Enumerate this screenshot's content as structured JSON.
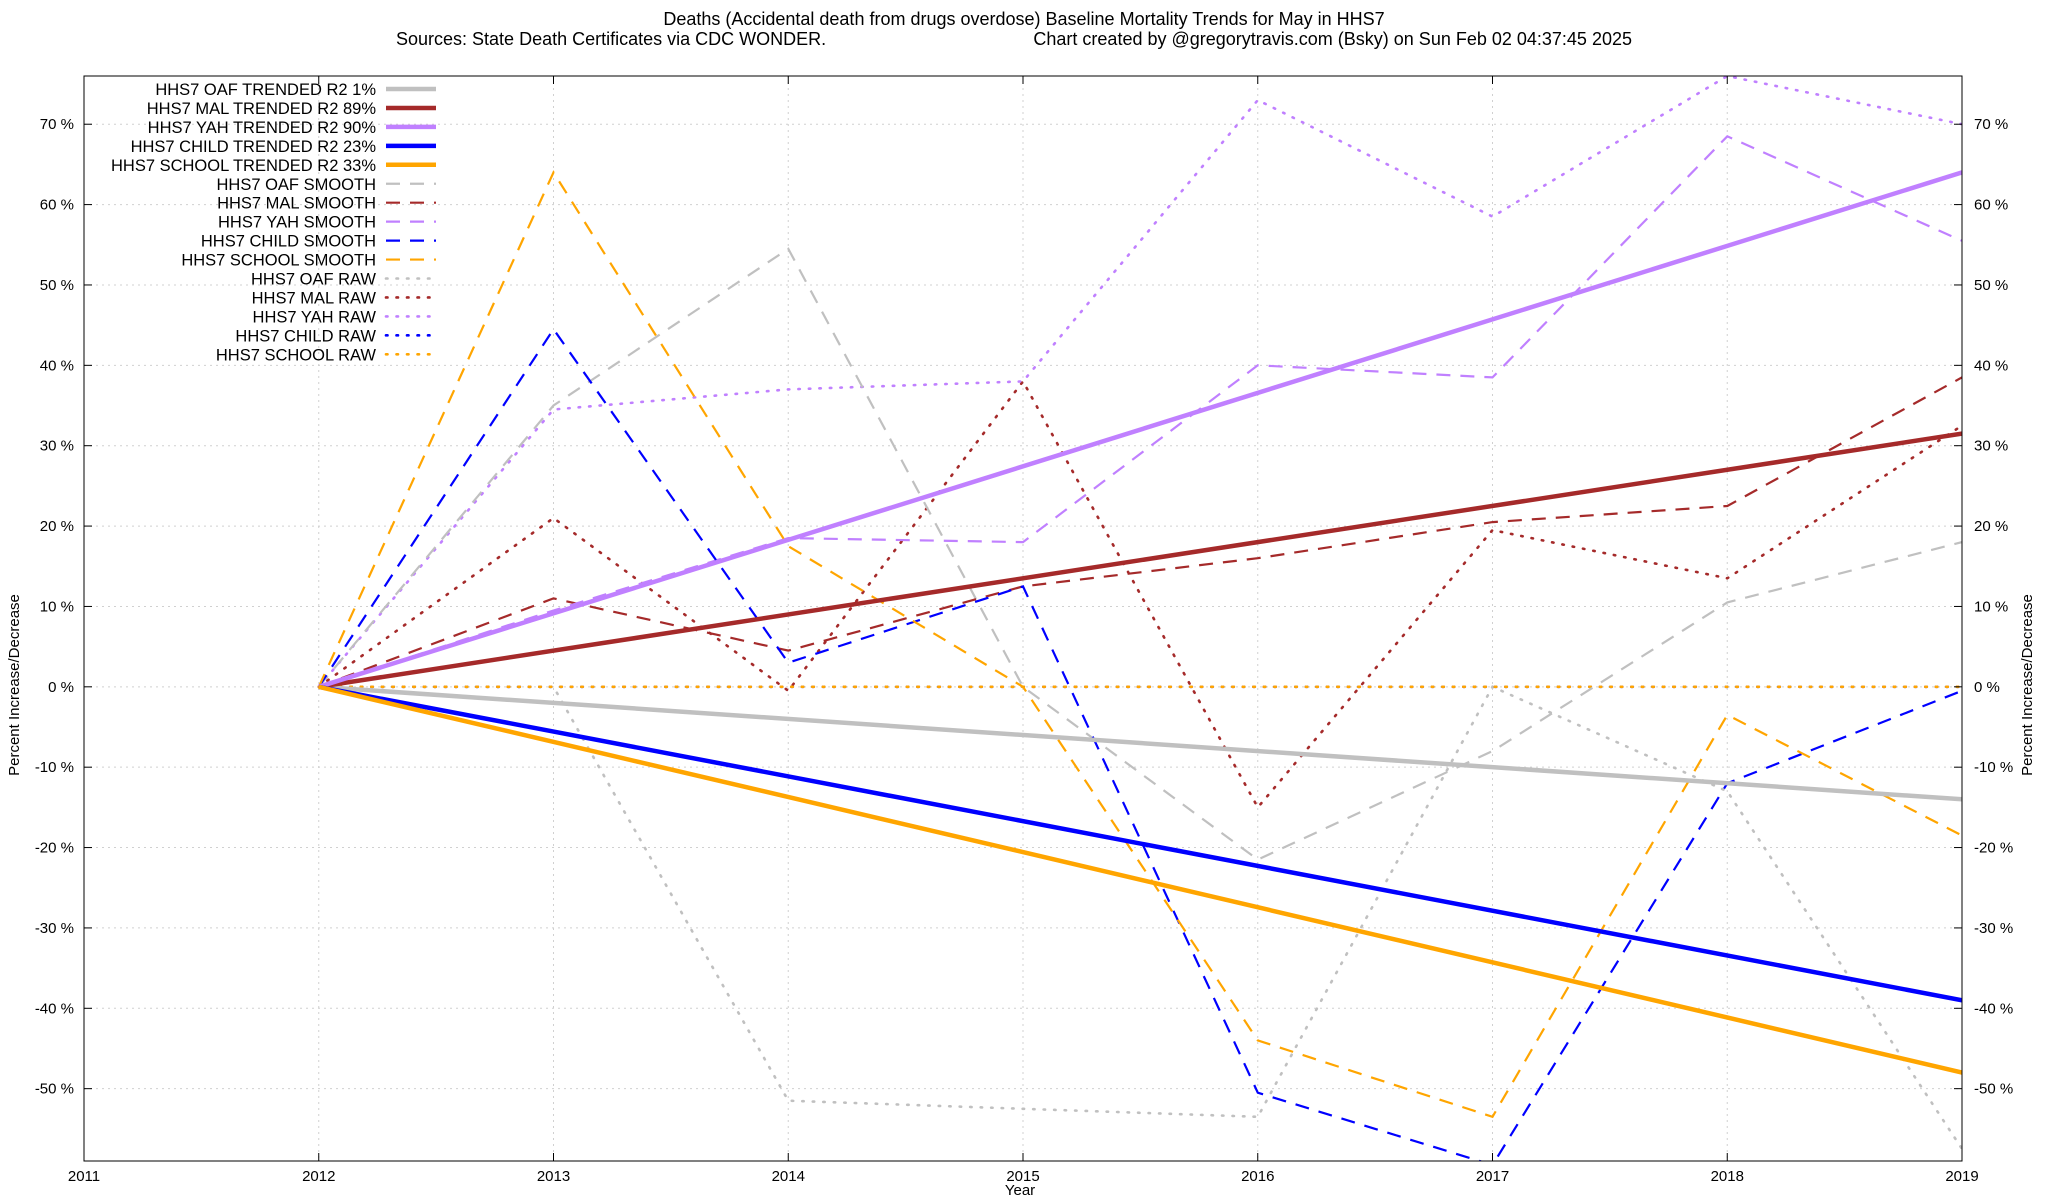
{
  "chart_data": {
    "type": "line",
    "title": "Deaths (Accidental death from drugs overdose)  Baseline Mortality Trends for May in HHS7",
    "subtitle_left": "Sources: State Death Certificates via CDC WONDER.",
    "subtitle_right": "Chart created by @gregorytravis.com (Bsky) on Sun Feb 02 04:37:45 2025",
    "xlabel": "Year",
    "ylabel": "Percent Increase/Decrease",
    "y2label": "Percent Increase/Decrease",
    "xlim": [
      2011,
      2019
    ],
    "ylim": [
      -59,
      76
    ],
    "x_ticks": [
      "2011",
      "2012",
      "2013",
      "2014",
      "2015",
      "2016",
      "2017",
      "2018",
      "2019"
    ],
    "y_ticks": [
      "-50 %",
      "-40 %",
      "-30 %",
      "-20 %",
      "-10 %",
      "0 %",
      "10 %",
      "20 %",
      "30 %",
      "40 %",
      "50 %",
      "60 %",
      "70 %"
    ],
    "grid": true,
    "legend_position": "top-left",
    "x": [
      2012,
      2013,
      2014,
      2015,
      2016,
      2017,
      2018,
      2019
    ],
    "series": [
      {
        "name": "HHS7 OAF TRENDED R2",
        "r2": "1%",
        "style": "solid",
        "color": "#c0c0c0",
        "x": [
          2012,
          2019
        ],
        "values": [
          0,
          -14
        ]
      },
      {
        "name": "HHS7 MAL TRENDED R2",
        "r2": "89%",
        "style": "solid",
        "color": "#a52a2a",
        "x": [
          2012,
          2019
        ],
        "values": [
          0,
          31.5
        ]
      },
      {
        "name": "HHS7 YAH TRENDED R2",
        "r2": "90%",
        "style": "solid",
        "color": "#c080ff",
        "x": [
          2012,
          2019
        ],
        "values": [
          0,
          64
        ]
      },
      {
        "name": "HHS7 CHILD TRENDED R2",
        "r2": "23%",
        "style": "solid",
        "color": "#0000ff",
        "x": [
          2012,
          2019
        ],
        "values": [
          0,
          -39
        ]
      },
      {
        "name": "HHS7 SCHOOL TRENDED R2",
        "r2": "33%",
        "style": "solid",
        "color": "#ffa500",
        "x": [
          2012,
          2019
        ],
        "values": [
          0,
          -48
        ]
      },
      {
        "name": "HHS7 OAF SMOOTH",
        "style": "dashed",
        "color": "#c0c0c0",
        "values": [
          0,
          35,
          54.5,
          0,
          -21.5,
          -8,
          10.5,
          18
        ]
      },
      {
        "name": "HHS7 MAL SMOOTH",
        "style": "dashed",
        "color": "#a52a2a",
        "values": [
          0,
          11,
          4.5,
          12.5,
          16,
          20.5,
          22.5,
          38.5
        ]
      },
      {
        "name": "HHS7 YAH SMOOTH",
        "style": "dashed",
        "color": "#c080ff",
        "values": [
          0,
          9.5,
          18.5,
          18,
          40,
          38.5,
          68.5,
          55.5
        ]
      },
      {
        "name": "HHS7 CHILD SMOOTH",
        "style": "dashed",
        "color": "#0000ff",
        "values": [
          0,
          44.5,
          3,
          12.5,
          -50.5,
          -59.5,
          -12,
          -0.5
        ]
      },
      {
        "name": "HHS7 SCHOOL SMOOTH",
        "style": "dashed",
        "color": "#ffa500",
        "values": [
          0,
          64,
          17.5,
          0,
          -44,
          -53.5,
          -3.5,
          -18.5
        ]
      },
      {
        "name": "HHS7 OAF RAW",
        "style": "dotted",
        "color": "#c0c0c0",
        "values": [
          0,
          0,
          -51.5,
          -52.5,
          -53.5,
          0,
          -13,
          -57.5
        ]
      },
      {
        "name": "HHS7 MAL RAW",
        "style": "dotted",
        "color": "#a52a2a",
        "values": [
          0,
          21,
          -0.5,
          38,
          -15,
          19.5,
          13.5,
          32.5
        ]
      },
      {
        "name": "HHS7 YAH RAW",
        "style": "dotted",
        "color": "#c080ff",
        "values": [
          0,
          34.5,
          37,
          38,
          73,
          58.5,
          76,
          70
        ]
      },
      {
        "name": "HHS7 CHILD RAW",
        "style": "dotted",
        "color": "#0000ff",
        "values": [
          0,
          0,
          0,
          0,
          0,
          0,
          0,
          0
        ]
      },
      {
        "name": "HHS7 SCHOOL RAW",
        "style": "dotted",
        "color": "#ffa500",
        "values": [
          0,
          0,
          0,
          0,
          0,
          0,
          0,
          0
        ]
      }
    ]
  }
}
